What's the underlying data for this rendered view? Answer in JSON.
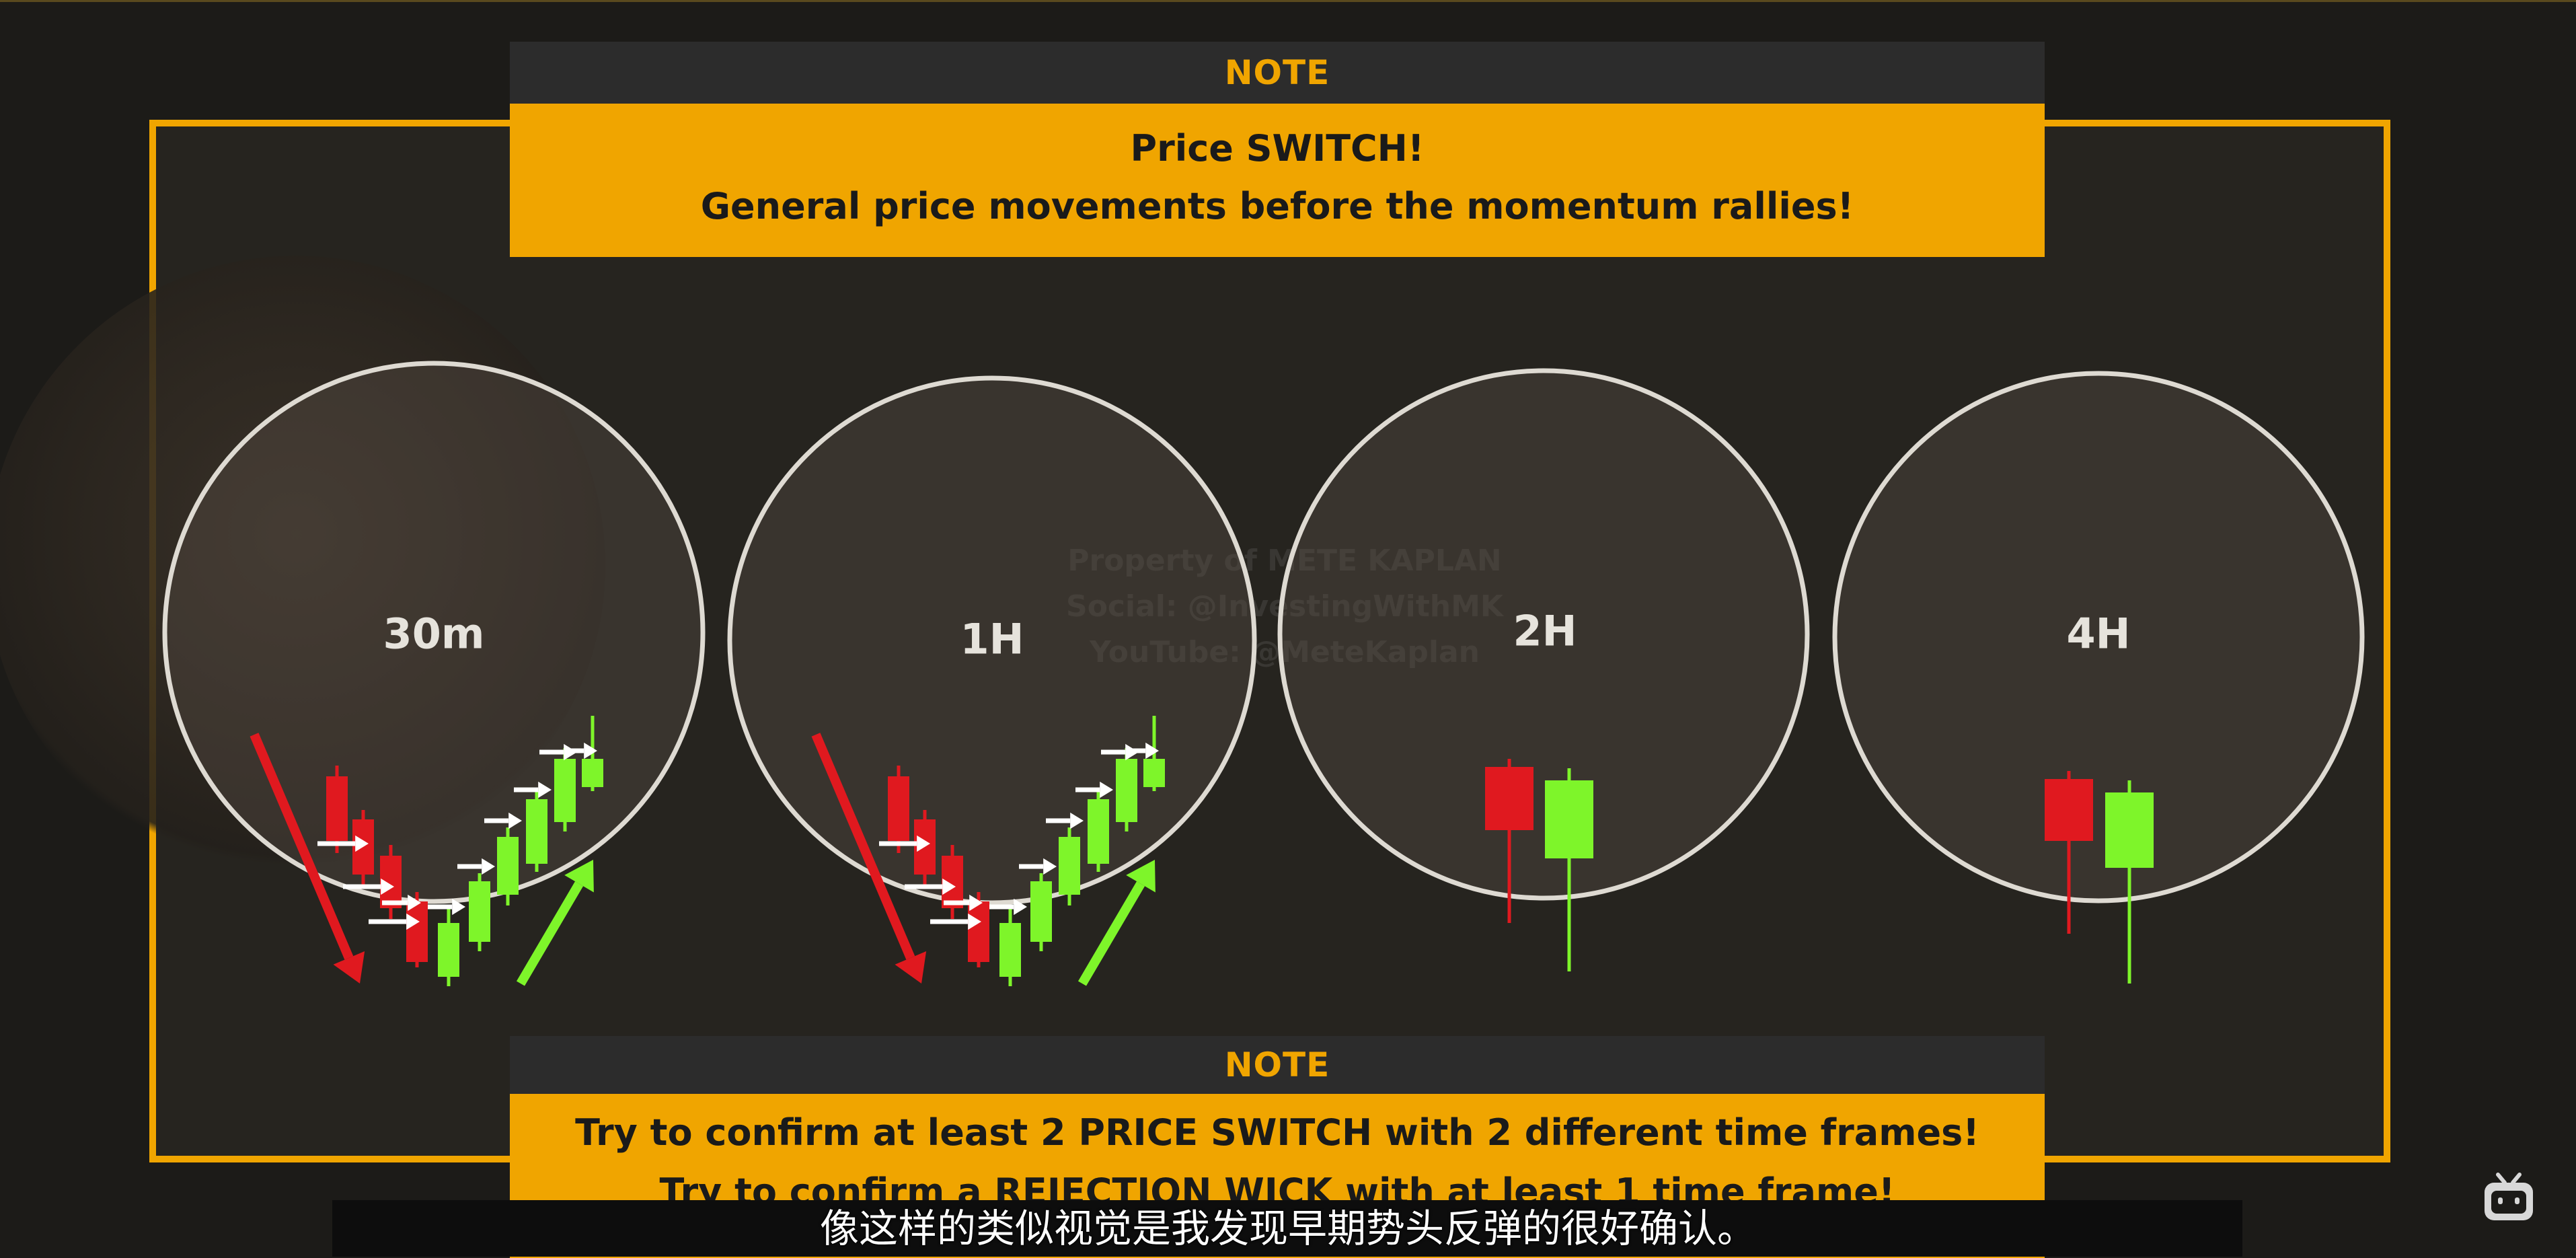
{
  "top_note": {
    "header": "NOTE",
    "line1": "Price SWITCH!",
    "line2": "General price movements before the momentum rallies!"
  },
  "timeframes": [
    {
      "label": "30m"
    },
    {
      "label": "1H"
    },
    {
      "label": "2H"
    },
    {
      "label": "4H"
    }
  ],
  "watermark": {
    "line1": "Property of METE KAPLAN",
    "line2": "Social: @InvestingWithMK",
    "line3": "YouTube: @MeteKaplan"
  },
  "bottom_note": {
    "header": "NOTE",
    "line1": "Try to confirm at least 2 PRICE SWITCH with 2 different time frames!",
    "line2": "Try to confirm a REJECTION WICK with at least 1 time frame!"
  },
  "subtitle": "像这样的类似视觉是我发现早期势头反弹的很好确认。",
  "colors": {
    "accent": "#f0a500",
    "bearish": "#e0191f",
    "bullish": "#7ef52a",
    "arrow": "#ffffff"
  },
  "icons": [
    "bilibili-tv-icon"
  ]
}
